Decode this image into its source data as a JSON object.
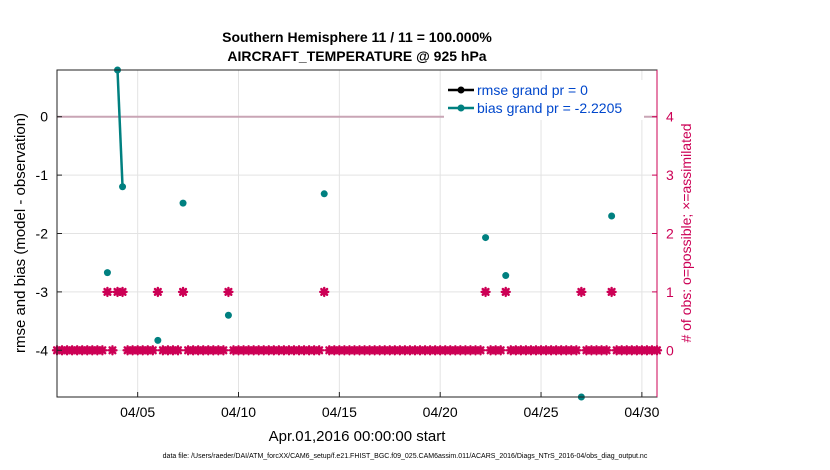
{
  "chart_data": {
    "type": "scatter",
    "title_line1": "Southern Hemisphere 11 / 11 = 100.000%",
    "title_line2": "AIRCRAFT_TEMPERATURE @ 925 hPa",
    "xlabel": "Apr.01,2016 00:00:00 start",
    "ylabel": "rmse and bias (model - observation)",
    "ylabel_right": "# of obs: o=possible; ×=assimilated",
    "footer": "data file: /Users/raeder/DAI/ATM_forcXX/CAM6_setup/f.e21.FHIST_BGC.f09_025.CAM6assim.011/ACARS_2016/Diags_NTrS_2016-04/obs_diag_output.nc",
    "xlim": [
      1.0,
      30.75
    ],
    "ylim": [
      -4.8,
      0.8
    ],
    "ylim_right": [
      -0.8,
      4.8
    ],
    "x_ticks": [
      5,
      10,
      15,
      20,
      25,
      30
    ],
    "x_tick_labels": [
      "04/05",
      "04/10",
      "04/15",
      "04/20",
      "04/25",
      "04/30"
    ],
    "y_ticks": [
      0,
      -1,
      -2,
      -3,
      -4
    ],
    "y_tick_labels": [
      "0",
      "-1",
      "-2",
      "-3",
      "-4"
    ],
    "y_ticks_right": [
      4,
      3,
      2,
      1,
      0
    ],
    "y_tick_labels_right": [
      "4",
      "3",
      "2",
      "1",
      "0"
    ],
    "grid": true,
    "legend_position": "top-right",
    "series": [
      {
        "name": "rmse grand pr = 0",
        "color": "#000000",
        "axis": "left",
        "points": [
          [
            1.0,
            0
          ],
          [
            30.75,
            0
          ]
        ]
      },
      {
        "name": "bias grand pr = -2.2205",
        "color": "#008080",
        "axis": "left",
        "points": [
          [
            3.5,
            -2.67
          ],
          [
            4.0,
            0.8
          ],
          [
            4.25,
            -1.2
          ],
          [
            6.0,
            -3.83
          ],
          [
            7.25,
            -1.48
          ],
          [
            9.5,
            -3.4
          ],
          [
            14.25,
            -1.32
          ],
          [
            22.25,
            -2.07
          ],
          [
            23.25,
            -2.72
          ],
          [
            27.0,
            -4.8
          ],
          [
            28.5,
            -1.7
          ]
        ],
        "segments": [
          [
            [
              4.0,
              0.8
            ],
            [
              4.25,
              -1.2
            ]
          ]
        ]
      }
    ],
    "obs_possible": {
      "color": "#cc0055",
      "axis": "right",
      "x_start": 1.0,
      "x_step": 0.25,
      "x_end": 30.75,
      "gaps": [
        3.5,
        4.0,
        4.25,
        6.0,
        7.25,
        9.5,
        14.25,
        22.25,
        23.25,
        27.0,
        28.5
      ],
      "ones": [
        3.5,
        4.0,
        4.25,
        6.0,
        7.25,
        9.5,
        14.25,
        22.25,
        23.25,
        27.0,
        28.5
      ]
    },
    "reference_line": {
      "y": 0,
      "color": "#c9a5b5"
    }
  }
}
